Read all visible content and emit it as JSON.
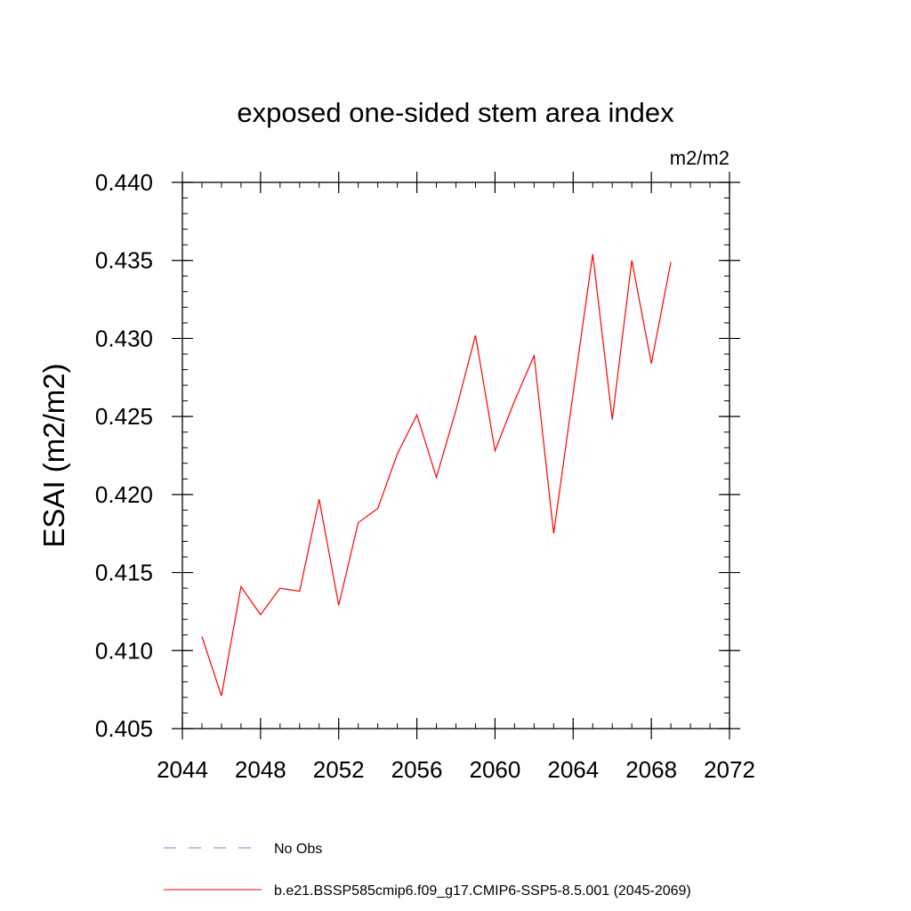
{
  "chart_data": {
    "type": "line",
    "title": "exposed one-sided stem area index",
    "units_label": "m2/m2",
    "ylabel": "ESAI  (m2/m2)",
    "xlabel": "",
    "xlim": [
      2044,
      2072
    ],
    "ylim": [
      0.405,
      0.44
    ],
    "x_ticks": [
      2044,
      2048,
      2052,
      2056,
      2060,
      2064,
      2068,
      2072
    ],
    "y_ticks": [
      0.405,
      0.41,
      0.415,
      0.42,
      0.425,
      0.43,
      0.435,
      0.44
    ],
    "x_tick_labels": [
      "2044",
      "2048",
      "2052",
      "2056",
      "2060",
      "2064",
      "2068",
      "2072"
    ],
    "y_tick_labels": [
      "0.405",
      "0.410",
      "0.415",
      "0.420",
      "0.425",
      "0.430",
      "0.435",
      "0.440"
    ],
    "grid": false,
    "legend_position": "bottom",
    "series": [
      {
        "name": "b.e21.BSSP585cmip6.f09_g17.CMIP6-SSP5-8.5.001 (2045-2069)",
        "color": "#ff0000",
        "dash": "solid",
        "x": [
          2045,
          2046,
          2047,
          2048,
          2049,
          2050,
          2051,
          2052,
          2053,
          2054,
          2055,
          2056,
          2057,
          2058,
          2059,
          2060,
          2061,
          2062,
          2063,
          2064,
          2065,
          2066,
          2067,
          2068,
          2069
        ],
        "values": [
          0.4109,
          0.4071,
          0.4141,
          0.4123,
          0.414,
          0.4138,
          0.4197,
          0.4129,
          0.4182,
          0.4191,
          0.4226,
          0.4251,
          0.4211,
          0.4254,
          0.4302,
          0.4228,
          0.426,
          0.4289,
          0.4175,
          0.4265,
          0.4354,
          0.4248,
          0.435,
          0.4284,
          0.4349
        ]
      }
    ],
    "legend": [
      {
        "label": "No Obs",
        "color": "#7f7fd9",
        "dash": "dashed"
      },
      {
        "label": "b.e21.BSSP585cmip6.f09_g17.CMIP6-SSP5-8.5.001 (2045-2069)",
        "color": "#ff0000",
        "dash": "solid"
      }
    ]
  }
}
